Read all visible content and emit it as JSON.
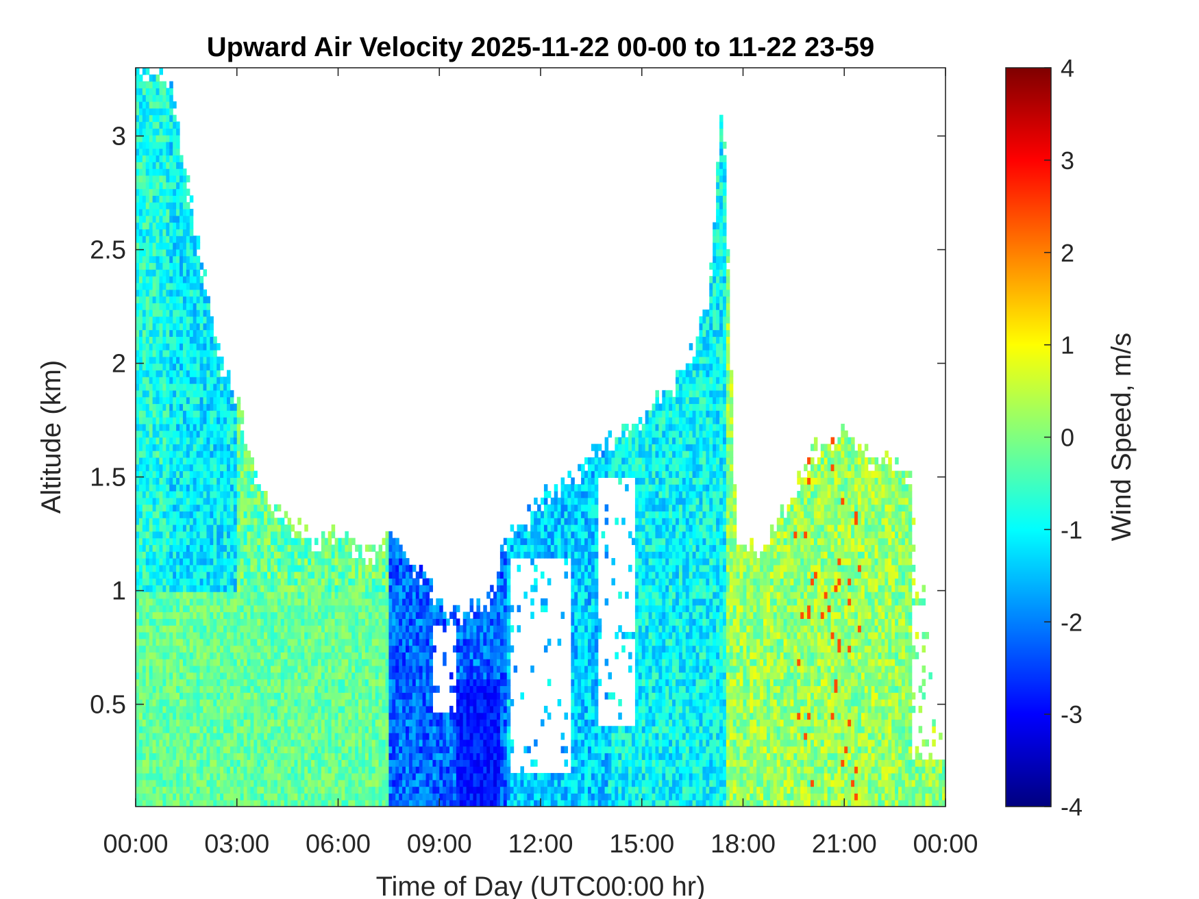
{
  "chart_data": {
    "type": "heatmap",
    "title": "Upward Air Velocity 2025-11-22 00-00 to 11-22 23-59",
    "xlabel": "Time of Day (UTC00:00 hr)",
    "ylabel": "Altitude (km)",
    "colorbar_label": "Wind Speed, m/s",
    "colormap": "jet",
    "xlim": [
      0,
      24
    ],
    "ylim": [
      0.05,
      3.3
    ],
    "clim": [
      -4,
      4
    ],
    "x_ticks": [
      {
        "value": 0,
        "label": "00:00"
      },
      {
        "value": 3,
        "label": "03:00"
      },
      {
        "value": 6,
        "label": "06:00"
      },
      {
        "value": 9,
        "label": "09:00"
      },
      {
        "value": 12,
        "label": "12:00"
      },
      {
        "value": 15,
        "label": "15:00"
      },
      {
        "value": 18,
        "label": "18:00"
      },
      {
        "value": 21,
        "label": "21:00"
      },
      {
        "value": 24,
        "label": "00:00"
      }
    ],
    "y_ticks": [
      {
        "value": 0.5,
        "label": "0.5"
      },
      {
        "value": 1,
        "label": "1"
      },
      {
        "value": 1.5,
        "label": "1.5"
      },
      {
        "value": 2,
        "label": "2"
      },
      {
        "value": 2.5,
        "label": "2.5"
      },
      {
        "value": 3,
        "label": "3"
      }
    ],
    "colorbar_ticks": [
      {
        "value": 4,
        "label": "4"
      },
      {
        "value": 3,
        "label": "3"
      },
      {
        "value": 2,
        "label": "2"
      },
      {
        "value": 1,
        "label": "1"
      },
      {
        "value": 0,
        "label": "0"
      },
      {
        "value": -1,
        "label": "-1"
      },
      {
        "value": -2,
        "label": "-2"
      },
      {
        "value": -3,
        "label": "-3"
      },
      {
        "value": -4,
        "label": "-4"
      }
    ],
    "grid": false,
    "cloud_top_km": [
      [
        0.0,
        3.3
      ],
      [
        1.0,
        3.25
      ],
      [
        1.5,
        2.8
      ],
      [
        2.0,
        2.4
      ],
      [
        2.5,
        2.0
      ],
      [
        3.0,
        1.85
      ],
      [
        3.5,
        1.5
      ],
      [
        4.0,
        1.4
      ],
      [
        4.5,
        1.3
      ],
      [
        5.5,
        1.2
      ],
      [
        6.0,
        1.25
      ],
      [
        7.0,
        1.15
      ],
      [
        7.5,
        1.25
      ],
      [
        8.5,
        1.05
      ],
      [
        9.0,
        0.95
      ],
      [
        9.5,
        0.9
      ],
      [
        10.5,
        0.95
      ],
      [
        11.0,
        1.25
      ],
      [
        11.5,
        1.3
      ],
      [
        12.0,
        1.4
      ],
      [
        12.5,
        1.45
      ],
      [
        13.0,
        1.5
      ],
      [
        13.5,
        1.6
      ],
      [
        14.0,
        1.65
      ],
      [
        15.0,
        1.75
      ],
      [
        15.5,
        1.85
      ],
      [
        16.0,
        1.9
      ],
      [
        16.5,
        2.05
      ],
      [
        17.0,
        2.3
      ],
      [
        17.4,
        3.2
      ],
      [
        17.8,
        1.2
      ],
      [
        18.5,
        1.15
      ],
      [
        19.0,
        1.3
      ],
      [
        19.5,
        1.4
      ],
      [
        20.0,
        1.6
      ],
      [
        20.5,
        1.65
      ],
      [
        21.0,
        1.7
      ],
      [
        21.5,
        1.6
      ],
      [
        22.0,
        1.55
      ],
      [
        22.5,
        1.55
      ],
      [
        23.0,
        1.5
      ],
      [
        23.5,
        0.8
      ],
      [
        24.0,
        0.2
      ]
    ],
    "velocity_regimes": [
      {
        "t_start": 0.0,
        "t_end": 1.0,
        "z_top_km": 3.2,
        "mean_ms": -0.8
      },
      {
        "t_start": 1.0,
        "t_end": 3.0,
        "z_top_km": 2.4,
        "mean_ms": -1.1
      },
      {
        "t_start": 3.0,
        "t_end": 7.5,
        "z_top_km": 1.25,
        "mean_ms": -0.2
      },
      {
        "t_start": 7.5,
        "t_end": 11.0,
        "z_top_km": 1.0,
        "mean_ms": -2.2
      },
      {
        "t_start": 11.0,
        "t_end": 14.0,
        "z_top_km": 1.6,
        "mean_ms": -1.4
      },
      {
        "t_start": 14.0,
        "t_end": 17.5,
        "z_top_km": 2.0,
        "mean_ms": -1.0
      },
      {
        "t_start": 17.5,
        "t_end": 22.5,
        "z_top_km": 1.65,
        "mean_ms": 0.2
      },
      {
        "t_start": 22.5,
        "t_end": 24.0,
        "z_top_km": 1.55,
        "mean_ms": 0.1
      }
    ]
  },
  "colors": {
    "axis": "#262626",
    "background": "#ffffff"
  }
}
